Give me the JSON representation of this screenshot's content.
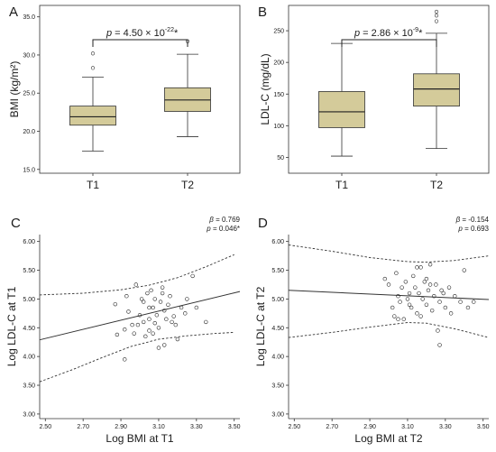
{
  "chart_data": [
    {
      "panel": "A",
      "type": "box",
      "ylabel": "BMI (kg/m²)",
      "ylim": [
        14.5,
        36.5
      ],
      "yticks": [
        "15.0",
        "20.0",
        "25.0",
        "30.0",
        "35.0"
      ],
      "categories": [
        "T1",
        "T2"
      ],
      "boxes": [
        {
          "min": 17.4,
          "q1": 20.8,
          "median": 21.9,
          "q3": 23.3,
          "max": 27.1,
          "outliers": [
            28.3,
            30.2
          ]
        },
        {
          "min": 19.3,
          "q1": 22.6,
          "median": 24.1,
          "q3": 25.7,
          "max": 30.1,
          "outliers": [
            31.8
          ]
        }
      ],
      "annotation": {
        "p_label": "p",
        "eq": " = 4.50 × 10",
        "exp": "-22",
        "star": "*"
      }
    },
    {
      "panel": "B",
      "type": "box",
      "ylabel": "LDL-C (mg/dL)",
      "ylim": [
        25,
        290
      ],
      "yticks": [
        "50",
        "100",
        "150",
        "200",
        "250"
      ],
      "categories": [
        "T1",
        "T2"
      ],
      "boxes": [
        {
          "min": 52,
          "q1": 97,
          "median": 122,
          "q3": 154,
          "max": 230,
          "outliers": []
        },
        {
          "min": 64,
          "q1": 131,
          "median": 158,
          "q3": 182,
          "max": 246,
          "outliers": [
            265,
            274,
            280
          ]
        }
      ],
      "annotation": {
        "p_label": "p",
        "eq": " = 2.86 × 10",
        "exp": "-9",
        "star": "*"
      }
    },
    {
      "panel": "C",
      "type": "scatter",
      "xlabel": "Log BMI at T1",
      "ylabel": "Log LDL-C at T1",
      "xlim": [
        2.47,
        3.53
      ],
      "ylim": [
        2.92,
        6.12
      ],
      "xticks": [
        "2.50",
        "2.70",
        "2.90",
        "3.10",
        "3.30",
        "3.50"
      ],
      "yticks": [
        "3.00",
        "3.50",
        "4.00",
        "4.50",
        "5.00",
        "5.50",
        "6.00"
      ],
      "beta_label": "β",
      "beta_value": " = 0.769",
      "p_label": "p",
      "p_value": " = 0.046*",
      "fit": [
        [
          2.47,
          4.29
        ],
        [
          3.53,
          5.13
        ]
      ],
      "ci_upper": [
        [
          2.47,
          5.07
        ],
        [
          2.7,
          5.1
        ],
        [
          2.9,
          5.16
        ],
        [
          3.05,
          5.24
        ],
        [
          3.2,
          5.37
        ],
        [
          3.35,
          5.56
        ],
        [
          3.5,
          5.77
        ]
      ],
      "ci_lower": [
        [
          2.47,
          3.56
        ],
        [
          2.65,
          3.78
        ],
        [
          2.8,
          3.98
        ],
        [
          2.95,
          4.17
        ],
        [
          3.1,
          4.3
        ],
        [
          3.25,
          4.36
        ],
        [
          3.4,
          4.4
        ],
        [
          3.5,
          4.42
        ]
      ],
      "points": [
        [
          2.87,
          4.91
        ],
        [
          2.88,
          4.38
        ],
        [
          2.92,
          4.47
        ],
        [
          2.93,
          5.05
        ],
        [
          2.92,
          3.95
        ],
        [
          2.96,
          4.55
        ],
        [
          2.98,
          5.25
        ],
        [
          2.99,
          4.55
        ],
        [
          3.0,
          4.72
        ],
        [
          3.01,
          5.0
        ],
        [
          3.02,
          4.6
        ],
        [
          3.03,
          4.35
        ],
        [
          3.04,
          5.1
        ],
        [
          3.05,
          4.85
        ],
        [
          3.05,
          4.65
        ],
        [
          3.06,
          5.15
        ],
        [
          3.07,
          4.85
        ],
        [
          3.08,
          4.58
        ],
        [
          3.08,
          5.0
        ],
        [
          3.09,
          4.72
        ],
        [
          3.1,
          4.5
        ],
        [
          3.11,
          4.95
        ],
        [
          3.12,
          5.1
        ],
        [
          3.13,
          4.2
        ],
        [
          3.13,
          4.8
        ],
        [
          3.15,
          4.9
        ],
        [
          3.16,
          5.05
        ],
        [
          3.17,
          4.6
        ],
        [
          3.18,
          4.7
        ],
        [
          3.2,
          4.3
        ],
        [
          3.22,
          4.85
        ],
        [
          3.24,
          4.75
        ],
        [
          3.25,
          5.0
        ],
        [
          3.28,
          5.4
        ],
        [
          3.3,
          4.85
        ],
        [
          3.05,
          4.45
        ],
        [
          2.97,
          4.4
        ],
        [
          3.02,
          4.95
        ],
        [
          3.1,
          4.15
        ],
        [
          3.14,
          4.65
        ],
        [
          3.19,
          4.55
        ],
        [
          2.94,
          4.78
        ],
        [
          3.12,
          5.2
        ],
        [
          3.07,
          4.4
        ],
        [
          3.35,
          4.6
        ]
      ]
    },
    {
      "panel": "D",
      "type": "scatter",
      "xlabel": "Log BMI at T2",
      "ylabel": "Log LDL-C at T2",
      "xlim": [
        2.47,
        3.53
      ],
      "ylim": [
        2.92,
        6.12
      ],
      "xticks": [
        "2.50",
        "2.70",
        "2.90",
        "3.10",
        "3.30",
        "3.50"
      ],
      "yticks": [
        "3.00",
        "3.50",
        "4.00",
        "4.50",
        "5.00",
        "5.50",
        "6.00"
      ],
      "beta_label": "β",
      "beta_value": " = -0.154",
      "p_label": "p",
      "p_value": " = 0.693",
      "fit": [
        [
          2.47,
          5.15
        ],
        [
          3.53,
          4.99
        ]
      ],
      "ci_upper": [
        [
          2.47,
          5.94
        ],
        [
          2.7,
          5.83
        ],
        [
          2.9,
          5.72
        ],
        [
          3.1,
          5.65
        ],
        [
          3.2,
          5.64
        ],
        [
          3.35,
          5.67
        ],
        [
          3.53,
          5.75
        ]
      ],
      "ci_lower": [
        [
          2.47,
          4.33
        ],
        [
          2.7,
          4.42
        ],
        [
          2.9,
          4.51
        ],
        [
          3.1,
          4.59
        ],
        [
          3.2,
          4.58
        ],
        [
          3.35,
          4.48
        ],
        [
          3.53,
          4.33
        ]
      ],
      "points": [
        [
          2.98,
          5.35
        ],
        [
          3.0,
          5.25
        ],
        [
          3.02,
          4.85
        ],
        [
          3.03,
          4.7
        ],
        [
          3.04,
          5.45
        ],
        [
          3.05,
          5.05
        ],
        [
          3.06,
          4.95
        ],
        [
          3.07,
          5.2
        ],
        [
          3.08,
          4.65
        ],
        [
          3.09,
          5.3
        ],
        [
          3.1,
          5.0
        ],
        [
          3.11,
          5.1
        ],
        [
          3.12,
          4.85
        ],
        [
          3.13,
          5.4
        ],
        [
          3.14,
          5.2
        ],
        [
          3.15,
          4.75
        ],
        [
          3.16,
          5.1
        ],
        [
          3.17,
          5.55
        ],
        [
          3.18,
          5.0
        ],
        [
          3.19,
          5.3
        ],
        [
          3.2,
          4.9
        ],
        [
          3.21,
          5.15
        ],
        [
          3.22,
          5.6
        ],
        [
          3.23,
          4.8
        ],
        [
          3.24,
          5.05
        ],
        [
          3.25,
          5.25
        ],
        [
          3.26,
          4.45
        ],
        [
          3.27,
          4.95
        ],
        [
          3.28,
          5.15
        ],
        [
          3.3,
          4.85
        ],
        [
          3.32,
          5.2
        ],
        [
          3.35,
          5.05
        ],
        [
          3.38,
          4.95
        ],
        [
          3.4,
          5.5
        ],
        [
          3.42,
          4.85
        ],
        [
          3.45,
          4.95
        ],
        [
          3.27,
          4.2
        ],
        [
          3.15,
          5.55
        ],
        [
          3.2,
          5.35
        ],
        [
          3.05,
          4.65
        ],
        [
          3.11,
          4.9
        ],
        [
          3.29,
          5.1
        ],
        [
          3.17,
          4.7
        ],
        [
          3.22,
          5.25
        ],
        [
          3.33,
          4.75
        ]
      ]
    }
  ]
}
